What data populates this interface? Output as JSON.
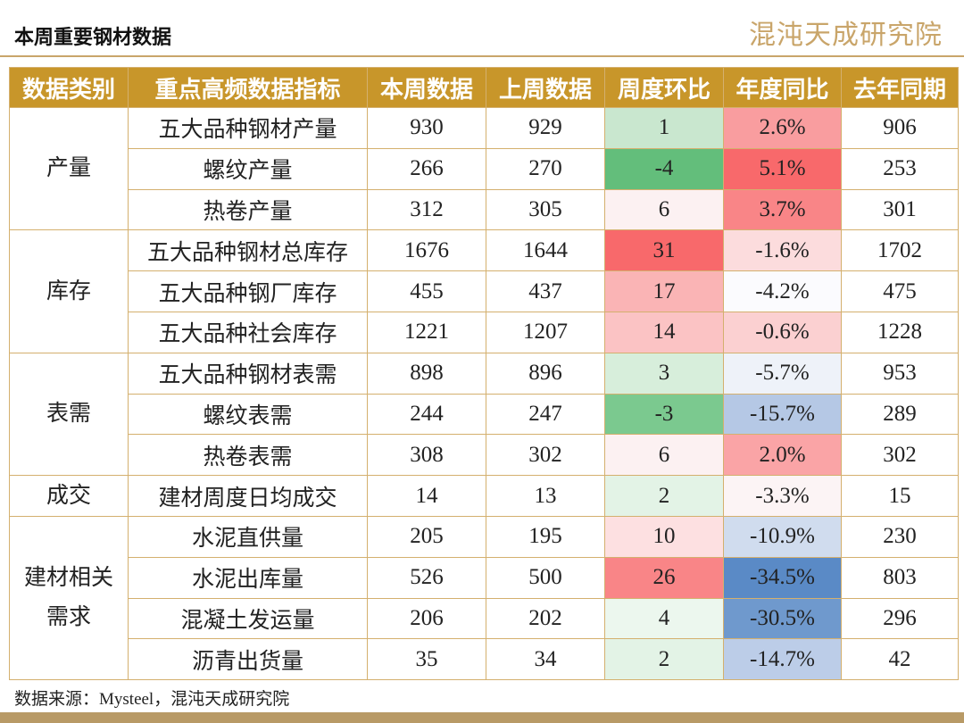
{
  "header": {
    "title": "本周重要钢材数据",
    "logo": "混沌天成研究院"
  },
  "table": {
    "columns": [
      "数据类别",
      "重点高频数据指标",
      "本周数据",
      "上周数据",
      "周度环比",
      "年度同比",
      "去年同期"
    ],
    "groups": [
      {
        "label": "产量",
        "rows": [
          {
            "indicator": "五大品种钢材产量",
            "this_week": 930,
            "last_week": 929,
            "wow": 1,
            "wow_color": "#c9e7cf",
            "yoy": "2.6%",
            "yoy_color": "#f99d9f",
            "last_year": 906
          },
          {
            "indicator": "螺纹产量",
            "this_week": 266,
            "last_week": 270,
            "wow": -4,
            "wow_color": "#63be7b",
            "yoy": "5.1%",
            "yoy_color": "#f8696b",
            "last_year": 253
          },
          {
            "indicator": "热卷产量",
            "this_week": 312,
            "last_week": 305,
            "wow": 6,
            "wow_color": "#fcf1f2",
            "yoy": "3.7%",
            "yoy_color": "#f98587",
            "last_year": 301
          }
        ]
      },
      {
        "label": "库存",
        "rows": [
          {
            "indicator": "五大品种钢材总库存",
            "this_week": 1676,
            "last_week": 1644,
            "wow": 31,
            "wow_color": "#f8696b",
            "yoy": "-1.6%",
            "yoy_color": "#fcdcdd",
            "last_year": 1702
          },
          {
            "indicator": "五大品种钢厂库存",
            "this_week": 455,
            "last_week": 437,
            "wow": 17,
            "wow_color": "#fab4b5",
            "yoy": "-4.2%",
            "yoy_color": "#fbfbfe",
            "last_year": 475
          },
          {
            "indicator": "五大品种社会库存",
            "this_week": 1221,
            "last_week": 1207,
            "wow": 14,
            "wow_color": "#fbc3c4",
            "yoy": "-0.6%",
            "yoy_color": "#fbd0d1",
            "last_year": 1228
          }
        ]
      },
      {
        "label": "表需",
        "rows": [
          {
            "indicator": "五大品种钢材表需",
            "this_week": 898,
            "last_week": 896,
            "wow": 3,
            "wow_color": "#d7eedb",
            "yoy": "-5.7%",
            "yoy_color": "#eef2f9",
            "last_year": 953
          },
          {
            "indicator": "螺纹表需",
            "this_week": 244,
            "last_week": 247,
            "wow": -3,
            "wow_color": "#7bc98f",
            "yoy": "-15.7%",
            "yoy_color": "#b5c8e5",
            "last_year": 289
          },
          {
            "indicator": "热卷表需",
            "this_week": 308,
            "last_week": 302,
            "wow": 6,
            "wow_color": "#fcf1f2",
            "yoy": "2.0%",
            "yoy_color": "#faa4a6",
            "last_year": 302
          }
        ]
      },
      {
        "label": "成交",
        "rows": [
          {
            "indicator": "建材周度日均成交",
            "this_week": 14,
            "last_week": 13,
            "wow": 2,
            "wow_color": "#e3f3e6",
            "yoy": "-3.3%",
            "yoy_color": "#fcf4f5",
            "last_year": 15
          }
        ]
      },
      {
        "label": "建材相关需求",
        "rows": [
          {
            "indicator": "水泥直供量",
            "this_week": 205,
            "last_week": 195,
            "wow": 10,
            "wow_color": "#fde0e1",
            "yoy": "-10.9%",
            "yoy_color": "#d0dcee",
            "last_year": 230
          },
          {
            "indicator": "水泥出库量",
            "this_week": 526,
            "last_week": 500,
            "wow": 26,
            "wow_color": "#f98587",
            "yoy": "-34.5%",
            "yoy_color": "#5a8ac6",
            "last_year": 803
          },
          {
            "indicator": "混凝土发运量",
            "this_week": 206,
            "last_week": 202,
            "wow": 4,
            "wow_color": "#ecf7ee",
            "yoy": "-30.5%",
            "yoy_color": "#6f99cd",
            "last_year": 296
          },
          {
            "indicator": "沥青出货量",
            "this_week": 35,
            "last_week": 34,
            "wow": 2,
            "wow_color": "#e3f3e6",
            "yoy": "-14.7%",
            "yoy_color": "#bccde8",
            "last_year": 42
          }
        ]
      }
    ]
  },
  "footer": {
    "source": "数据来源：Mysteel，混沌天成研究院"
  }
}
